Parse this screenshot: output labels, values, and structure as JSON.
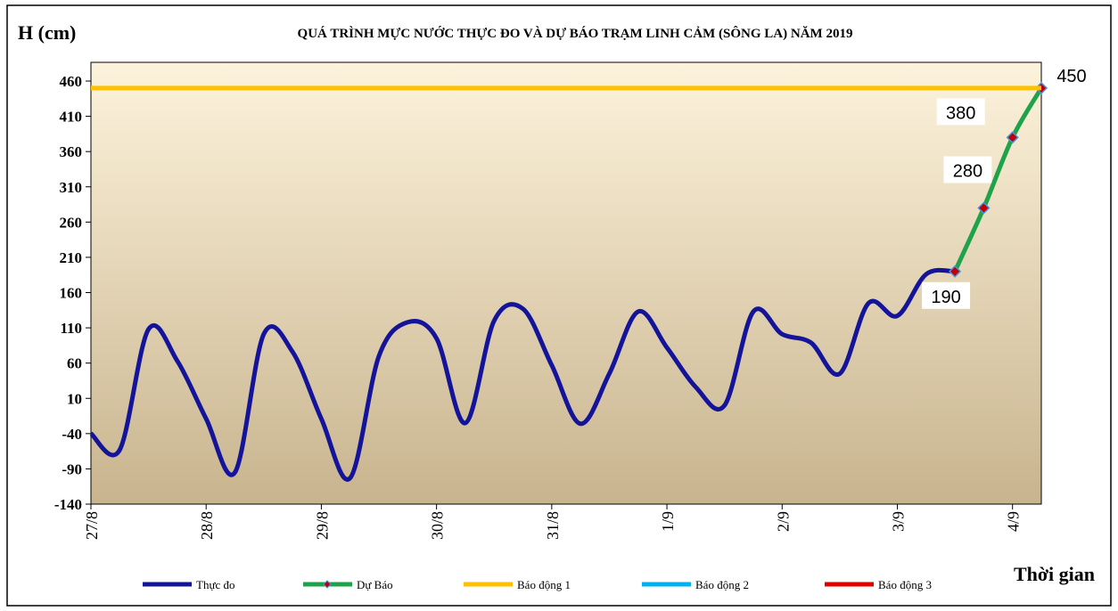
{
  "chart_data": {
    "type": "line",
    "title": "QUÁ TRÌNH   MỰC NƯỚC THỰC ĐO VÀ DỰ BÁO TRẠM   LINH  CẢM (SÔNG LA) NĂM 2019",
    "y_label": "H (cm)",
    "x_label": "Thời gian",
    "xlim": [
      0,
      8.25
    ],
    "ylim": [
      -140,
      460
    ],
    "yticks": [
      -140,
      -90,
      -40,
      10,
      60,
      110,
      160,
      210,
      260,
      310,
      360,
      410,
      460
    ],
    "xticks": [
      {
        "value": 0,
        "label": "27/8"
      },
      {
        "value": 1,
        "label": "28/8"
      },
      {
        "value": 2,
        "label": "29/8"
      },
      {
        "value": 3,
        "label": "30/8"
      },
      {
        "value": 4,
        "label": "31/8"
      },
      {
        "value": 5,
        "label": "1/9"
      },
      {
        "value": 6,
        "label": "2/9"
      },
      {
        "value": 7,
        "label": "3/9"
      },
      {
        "value": 8,
        "label": "4/9"
      }
    ],
    "series": [
      {
        "name": "Thực đo",
        "color": "#14149a",
        "x": [
          0,
          0.25,
          0.5,
          0.75,
          1,
          1.25,
          1.5,
          1.75,
          2,
          2.25,
          2.5,
          2.75,
          3,
          3.25,
          3.5,
          3.75,
          4,
          4.25,
          4.5,
          4.75,
          5,
          5.25,
          5.5,
          5.75,
          6,
          6.25,
          6.5,
          6.75,
          7,
          7.25,
          7.5
        ],
        "values": [
          -40,
          -63,
          108,
          63,
          -19,
          -95,
          101,
          76,
          -19,
          -103,
          70,
          118,
          95,
          -25,
          120,
          137,
          57,
          -26,
          45,
          133,
          82,
          26,
          0,
          133,
          101,
          89,
          45,
          145,
          127,
          186,
          190
        ]
      },
      {
        "name": "Dự Báo",
        "color": "#1fa34a",
        "x": [
          7.5,
          7.75,
          8,
          8.25
        ],
        "values": [
          190,
          280,
          380,
          450
        ],
        "value_labels": [
          "190",
          "280",
          "380",
          "450"
        ]
      },
      {
        "name": "Báo động 1",
        "color": "#ffc000",
        "level": 450
      },
      {
        "name": "Báo động 2",
        "color": "#00b0f0"
      },
      {
        "name": "Báo động 3",
        "color": "#e00000"
      }
    ]
  }
}
